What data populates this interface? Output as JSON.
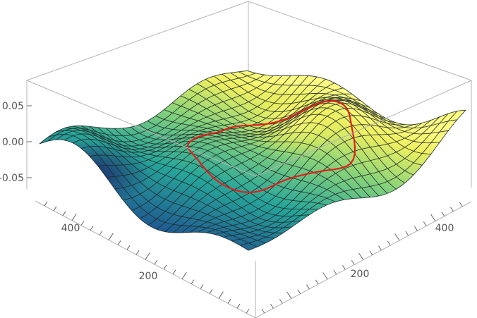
{
  "chart_data": {
    "type": "surface3d",
    "title": "",
    "z_ticks": [
      "0.05",
      "0.00",
      "-0.05"
    ],
    "left_axis_ticks": [
      "400",
      "200"
    ],
    "right_axis_ticks": [
      "400",
      "200"
    ],
    "z_range": [
      -0.08,
      0.08
    ],
    "mesh_lines": 25,
    "colormap": [
      "#24145e",
      "#1f5c92",
      "#27a69a",
      "#86d27a",
      "#eef060",
      "#fffc82"
    ],
    "contour_color": "#e0201c",
    "contour_level": 0.0,
    "box": true
  }
}
